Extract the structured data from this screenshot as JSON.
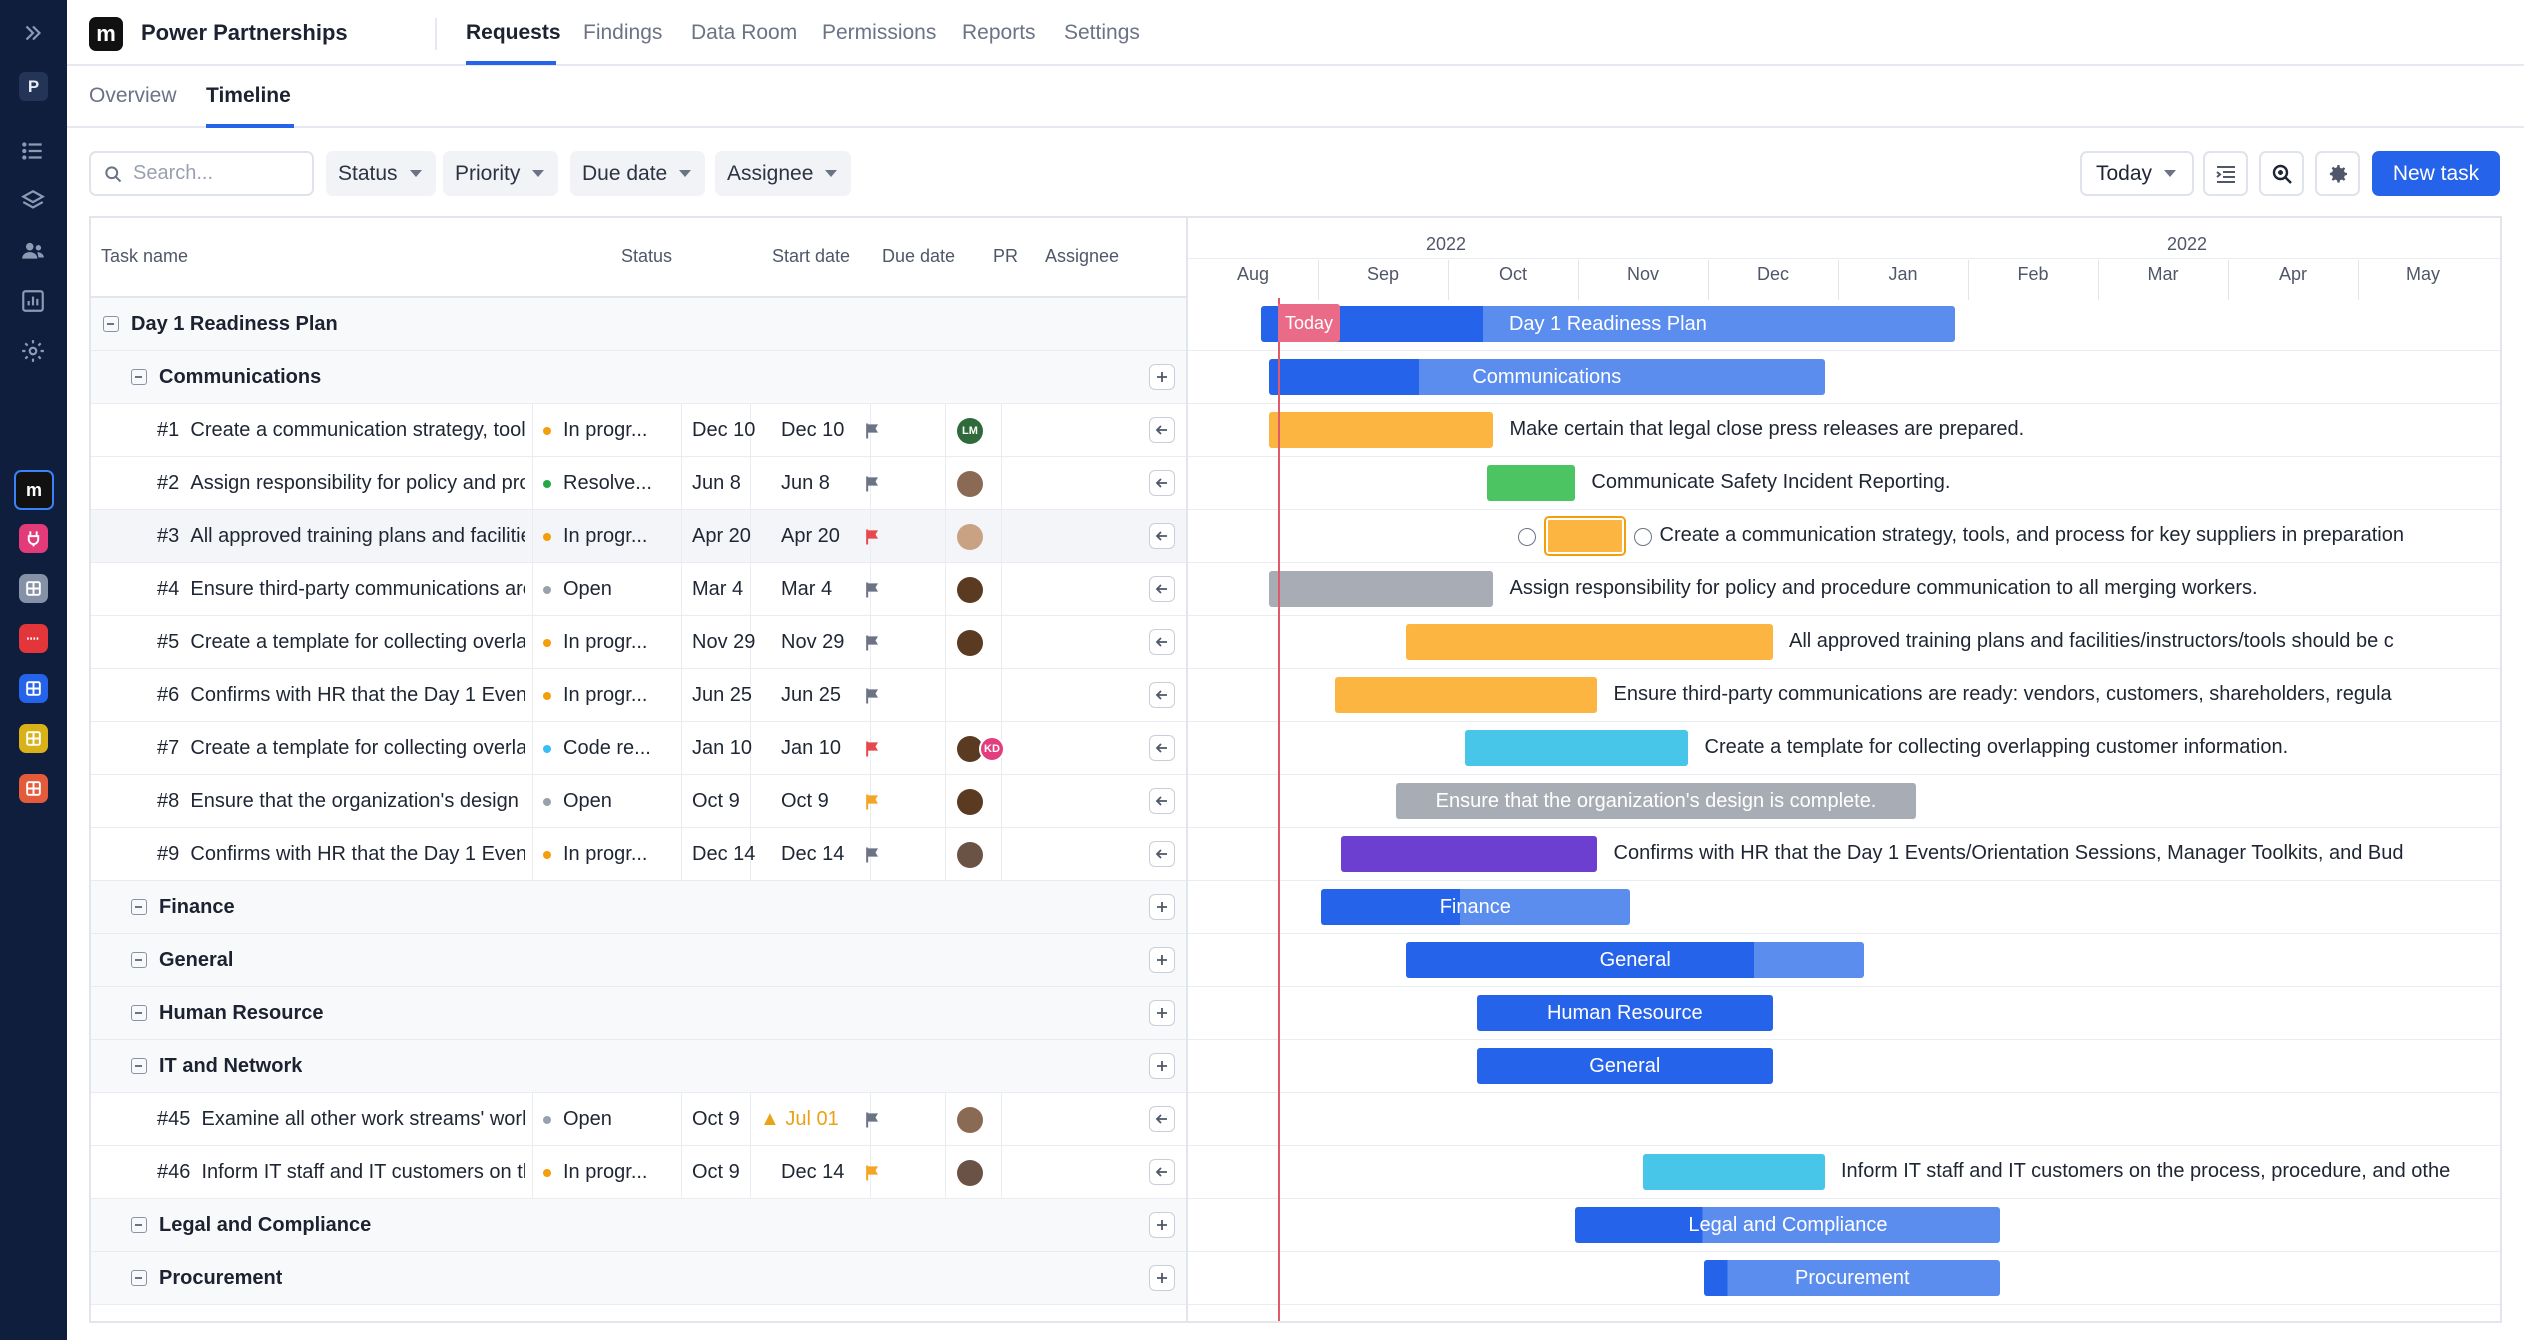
{
  "app": {
    "title": "Power Partnerships",
    "logo_letter": "m",
    "workspace_letter": "P"
  },
  "top_tabs": [
    {
      "label": "Requests",
      "active": true
    },
    {
      "label": "Findings"
    },
    {
      "label": "Data Room"
    },
    {
      "label": "Permissions"
    },
    {
      "label": "Reports"
    },
    {
      "label": "Settings"
    }
  ],
  "sub_tabs": [
    {
      "label": "Overview"
    },
    {
      "label": "Timeline",
      "active": true
    }
  ],
  "toolbar": {
    "search_placeholder": "Search...",
    "filters": [
      "Status",
      "Priority",
      "Due date",
      "Assignee"
    ],
    "today_label": "Today",
    "new_task_label": "New task"
  },
  "columns": [
    "Task name",
    "Status",
    "Start date",
    "Due date",
    "PR",
    "Assignee"
  ],
  "rows": [
    {
      "type": "root",
      "title": "Day 1 Readiness Plan"
    },
    {
      "type": "group",
      "title": "Communications"
    },
    {
      "type": "task",
      "id": "#1",
      "name": "Create a communication strategy, tools, a...",
      "status": "In progr...",
      "status_color": "#f59e0b",
      "start": "Dec 10",
      "due": "Dec 10",
      "flag_color": "#6b7385",
      "assignees": [
        {
          "initials": "LM",
          "color": "#2f6b3a"
        }
      ]
    },
    {
      "type": "task",
      "id": "#2",
      "name": "Assign responsibility for policy and proce...",
      "status": "Resolve...",
      "status_color": "#22a846",
      "start": "Jun 8",
      "due": "Jun 8",
      "flag_color": "#6b7385",
      "assignees": [
        {
          "initials": "",
          "color": "#8a6a55"
        }
      ]
    },
    {
      "type": "task",
      "id": "#3",
      "name": "All approved training plans and facilities/i...",
      "status": "In progr...",
      "status_color": "#f59e0b",
      "start": "Apr 20",
      "due": "Apr 20",
      "flag_color": "#e5484d",
      "assignees": [
        {
          "initials": "",
          "color": "#c9a183"
        }
      ],
      "highlight": true
    },
    {
      "type": "task",
      "id": "#4",
      "name": "Ensure third-party communications are re...",
      "status": "Open",
      "status_color": "#9aa1ae",
      "start": "Mar 4",
      "due": "Mar 4",
      "flag_color": "#6b7385",
      "assignees": [
        {
          "initials": "",
          "color": "#5a3b22"
        }
      ]
    },
    {
      "type": "task",
      "id": "#5",
      "name": "Create a template for collecting overlappi...",
      "status": "In progr...",
      "status_color": "#f59e0b",
      "start": "Nov 29",
      "due": "Nov 29",
      "flag_color": "#6b7385",
      "assignees": [
        {
          "initials": "",
          "color": "#5a3b22"
        }
      ]
    },
    {
      "type": "task",
      "id": "#6",
      "name": "Confirms with HR that the Day 1 Events/O...",
      "status": "In progr...",
      "status_color": "#f59e0b",
      "start": "Jun 25",
      "due": "Jun 25",
      "flag_color": "#6b7385",
      "assignees": []
    },
    {
      "type": "task",
      "id": "#7",
      "name": "Create a template for collecting overlappi...",
      "status": "Code re...",
      "status_color": "#38bdf8",
      "start": "Jan 10",
      "due": "Jan 10",
      "flag_color": "#e5484d",
      "assignees": [
        {
          "initials": "",
          "color": "#5a3b22"
        },
        {
          "initials": "KD",
          "color": "#e23d7c"
        }
      ]
    },
    {
      "type": "task",
      "id": "#8",
      "name": "Ensure that the organization's design is c...",
      "status": "Open",
      "status_color": "#9aa1ae",
      "start": "Oct 9",
      "due": "Oct 9",
      "flag_color": "#f5a524",
      "assignees": [
        {
          "initials": "",
          "color": "#5a3b22"
        }
      ]
    },
    {
      "type": "task",
      "id": "#9",
      "name": "Confirms with HR that the Day 1 Events/O...",
      "status": "In progr...",
      "status_color": "#f59e0b",
      "start": "Dec 14",
      "due": "Dec 14",
      "flag_color": "#6b7385",
      "assignees": [
        {
          "initials": "",
          "color": "#6a5245"
        }
      ]
    },
    {
      "type": "group",
      "title": "Finance"
    },
    {
      "type": "group",
      "title": "General"
    },
    {
      "type": "group",
      "title": "Human Resource"
    },
    {
      "type": "group",
      "title": "IT and Network"
    },
    {
      "type": "task",
      "id": "#45",
      "name": "Examine all other work streams' worksh...",
      "status": "Open",
      "status_color": "#9aa1ae",
      "start": "Oct 9",
      "due": "Jul 01",
      "due_warning": true,
      "flag_color": "#6b7385",
      "assignees": [
        {
          "initials": "",
          "color": "#8a6a55"
        }
      ]
    },
    {
      "type": "task",
      "id": "#46",
      "name": "Inform IT staff and IT customers on the...",
      "status": "In progr...",
      "status_color": "#f59e0b",
      "start": "Oct 9",
      "due": "Dec 14",
      "flag_color": "#f5a524",
      "assignees": [
        {
          "initials": "",
          "color": "#6a5245"
        }
      ]
    },
    {
      "type": "group",
      "title": "Legal and Compliance"
    },
    {
      "type": "group",
      "title": "Procurement"
    }
  ],
  "gantt": {
    "years": [
      {
        "label": "2022",
        "month_index": 2
      },
      {
        "label": "2022",
        "month_index": 7.7
      }
    ],
    "months": [
      "Aug",
      "Sep",
      "Oct",
      "Nov",
      "Dec",
      "Jan",
      "Feb",
      "Mar",
      "Apr",
      "May"
    ],
    "today_label": "Today",
    "bars": [
      {
        "row": 0,
        "start": 0.56,
        "end": 5.9,
        "progress": 0.32,
        "color": "#2563eb",
        "light": "#5b8def",
        "label": "Day 1 Readiness Plan",
        "inside": true
      },
      {
        "row": 1,
        "start": 0.62,
        "end": 4.9,
        "progress": 0.27,
        "color": "#2563eb",
        "light": "#5b8def",
        "label": "Communications",
        "inside": true
      },
      {
        "row": 2,
        "start": 0.62,
        "end": 2.35,
        "color": "#fbb540",
        "label": "Make certain that legal close press releases are prepared."
      },
      {
        "row": 3,
        "start": 2.3,
        "end": 2.98,
        "color": "#4cc462",
        "label": "Communicate Safety Incident Reporting."
      },
      {
        "row": 4,
        "start": 2.75,
        "end": 3.35,
        "color": "#fbb540",
        "label": "Create a communication strategy, tools, and process for key suppliers in preparation",
        "selected": true
      },
      {
        "row": 5,
        "start": 0.62,
        "end": 2.35,
        "color": "#a8adb5",
        "label": "Assign responsibility for policy and procedure communication to all merging workers."
      },
      {
        "row": 6,
        "start": 1.68,
        "end": 4.5,
        "color": "#fbb540",
        "label": "All approved training plans and facilities/instructors/tools should be c"
      },
      {
        "row": 7,
        "start": 1.13,
        "end": 3.15,
        "color": "#fbb540",
        "label": "Ensure third-party communications are ready: vendors, customers, shareholders, regula"
      },
      {
        "row": 8,
        "start": 2.13,
        "end": 3.85,
        "color": "#47c6ea",
        "label": "Create a template for collecting overlapping customer information."
      },
      {
        "row": 9,
        "start": 1.6,
        "end": 5.6,
        "color": "#a8adb5",
        "label": "Ensure that the organization's design is complete.",
        "inside": true
      },
      {
        "row": 10,
        "start": 1.18,
        "end": 3.15,
        "color": "#6d3fd1",
        "label": "Confirms with HR that the Day 1 Events/Orientation Sessions, Manager Toolkits, and Bud"
      },
      {
        "row": 11,
        "start": 1.02,
        "end": 3.4,
        "progress": 0.45,
        "color": "#2563eb",
        "light": "#5b8def",
        "label": "Finance",
        "inside": true
      },
      {
        "row": 12,
        "start": 1.68,
        "end": 5.2,
        "progress": 0.76,
        "color": "#2563eb",
        "light": "#5b8def",
        "label": "General",
        "inside": true
      },
      {
        "row": 13,
        "start": 2.22,
        "end": 4.5,
        "progress": 1.0,
        "color": "#2563eb",
        "light": "#5b8def",
        "label": "Human Resource",
        "inside": true
      },
      {
        "row": 14,
        "start": 2.22,
        "end": 4.5,
        "progress": 1.0,
        "color": "#2563eb",
        "light": "#5b8def",
        "label": "General",
        "inside": true
      },
      {
        "row": 16,
        "start": 3.5,
        "end": 4.9,
        "color": "#47c6ea",
        "label": "Inform IT staff and IT customers on the process, procedure, and othe"
      },
      {
        "row": 17,
        "start": 2.98,
        "end": 6.25,
        "progress": 0.3,
        "color": "#2563eb",
        "light": "#5b8def",
        "label": "Legal and Compliance",
        "inside": true
      },
      {
        "row": 18,
        "start": 3.97,
        "end": 6.25,
        "progress": 0.08,
        "color": "#2563eb",
        "light": "#5b8def",
        "label": "Procurement",
        "inside": true
      }
    ]
  },
  "colors": {
    "accent": "#2563eb",
    "rail": "#0f1e3d",
    "today_line": "#e05a6a"
  }
}
